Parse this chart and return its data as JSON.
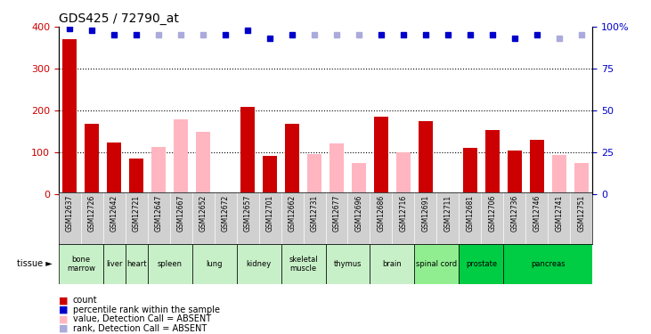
{
  "title": "GDS425 / 72790_at",
  "samples": [
    "GSM12637",
    "GSM12726",
    "GSM12642",
    "GSM12721",
    "GSM12647",
    "GSM12667",
    "GSM12652",
    "GSM12672",
    "GSM12657",
    "GSM12701",
    "GSM12662",
    "GSM12731",
    "GSM12677",
    "GSM12696",
    "GSM12686",
    "GSM12716",
    "GSM12691",
    "GSM12711",
    "GSM12681",
    "GSM12706",
    "GSM12736",
    "GSM12746",
    "GSM12741",
    "GSM12751"
  ],
  "count_values": [
    370,
    168,
    122,
    85,
    null,
    null,
    null,
    null,
    208,
    90,
    168,
    null,
    null,
    null,
    185,
    null,
    173,
    null,
    110,
    152,
    104,
    130,
    null,
    null
  ],
  "absent_values": [
    null,
    null,
    null,
    null,
    113,
    178,
    148,
    null,
    null,
    null,
    null,
    95,
    120,
    73,
    null,
    100,
    null,
    null,
    null,
    null,
    null,
    null,
    93,
    73
  ],
  "percentile_rank": [
    99,
    98,
    95,
    95,
    null,
    null,
    null,
    95,
    98,
    93,
    95,
    null,
    null,
    null,
    95,
    95,
    95,
    95,
    95,
    95,
    93,
    95,
    null,
    null
  ],
  "absent_rank": [
    null,
    null,
    null,
    null,
    95,
    95,
    95,
    null,
    null,
    null,
    null,
    95,
    95,
    95,
    null,
    null,
    null,
    null,
    null,
    null,
    null,
    null,
    93,
    95
  ],
  "tissues": [
    {
      "name": "bone\nmarrow",
      "start": 0,
      "end": 2,
      "color": "#c8f0c8"
    },
    {
      "name": "liver",
      "start": 2,
      "end": 3,
      "color": "#c8f0c8"
    },
    {
      "name": "heart",
      "start": 3,
      "end": 4,
      "color": "#c8f0c8"
    },
    {
      "name": "spleen",
      "start": 4,
      "end": 6,
      "color": "#c8f0c8"
    },
    {
      "name": "lung",
      "start": 6,
      "end": 8,
      "color": "#c8f0c8"
    },
    {
      "name": "kidney",
      "start": 8,
      "end": 10,
      "color": "#c8f0c8"
    },
    {
      "name": "skeletal\nmuscle",
      "start": 10,
      "end": 12,
      "color": "#c8f0c8"
    },
    {
      "name": "thymus",
      "start": 12,
      "end": 14,
      "color": "#c8f0c8"
    },
    {
      "name": "brain",
      "start": 14,
      "end": 16,
      "color": "#c8f0c8"
    },
    {
      "name": "spinal cord",
      "start": 16,
      "end": 18,
      "color": "#90ee90"
    },
    {
      "name": "prostate",
      "start": 18,
      "end": 20,
      "color": "#00cc44"
    },
    {
      "name": "pancreas",
      "start": 20,
      "end": 24,
      "color": "#00cc44"
    }
  ],
  "bar_color": "#cc0000",
  "absent_bar_color": "#ffb6c1",
  "rank_color": "#0000cc",
  "absent_rank_color": "#aaaadd",
  "gsm_bg": "#d0d0d0",
  "plot_bg": "#ffffff"
}
